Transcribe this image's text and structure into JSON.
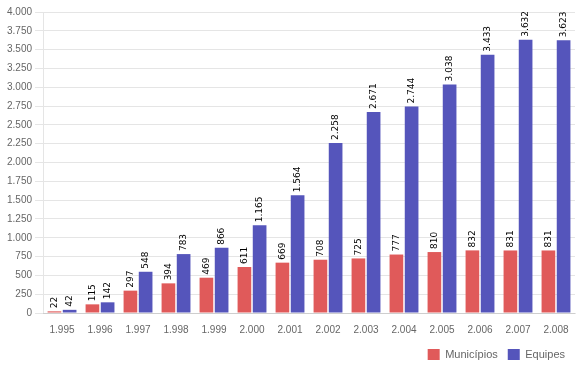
{
  "chart_data": {
    "type": "bar",
    "categories": [
      "1.995",
      "1.996",
      "1.997",
      "1.998",
      "1.999",
      "2.000",
      "2.001",
      "2.002",
      "2.003",
      "2.004",
      "2.005",
      "2.006",
      "2.007",
      "2.008"
    ],
    "series": [
      {
        "name": "Municípios",
        "color": "#e05a5a",
        "values": [
          22,
          115,
          297,
          394,
          469,
          611,
          669,
          708,
          725,
          777,
          810,
          832,
          831,
          831
        ]
      },
      {
        "name": "Equipes",
        "color": "#5555bb",
        "values": [
          42,
          142,
          548,
          783,
          866,
          1165,
          1564,
          2258,
          2671,
          2744,
          3038,
          3433,
          3632,
          3623
        ],
        "value_labels": [
          "42",
          "142",
          "548",
          "783",
          "866",
          "1.165",
          "1.564",
          "2.258",
          "2.671",
          "2.744",
          "3.038",
          "3.433",
          "3.632",
          "3.623"
        ]
      }
    ],
    "ylim": [
      0,
      4000
    ],
    "yticks": [
      0,
      250,
      500,
      750,
      {
        "value": 1000,
        "label": "1.000"
      },
      {
        "value": 1250,
        "label": "1.250"
      },
      {
        "value": 1500,
        "label": "1.500"
      },
      {
        "value": 1750,
        "label": "1.750"
      },
      {
        "value": 2000,
        "label": "2.000"
      },
      {
        "value": 2250,
        "label": "2.250"
      },
      {
        "value": 2500,
        "label": "2.500"
      },
      {
        "value": 2750,
        "label": "2.750"
      },
      {
        "value": 3000,
        "label": "3.000"
      },
      {
        "value": 3250,
        "label": "3.250"
      },
      {
        "value": 3500,
        "label": "3.500"
      },
      {
        "value": 3750,
        "label": "3.750"
      },
      {
        "value": 4000,
        "label": "4.000"
      }
    ],
    "grid": true,
    "legend": "lower right",
    "data_labels": true
  }
}
